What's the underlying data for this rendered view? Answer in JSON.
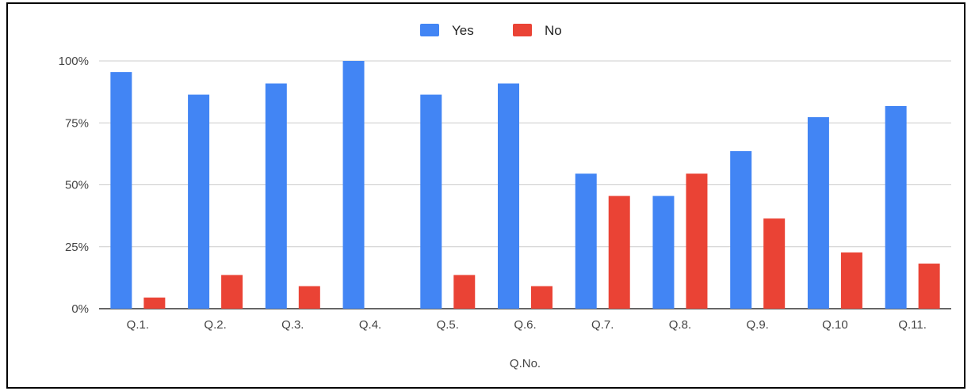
{
  "chart_data": {
    "type": "bar",
    "title": "",
    "xlabel": "Q.No.",
    "ylabel": "",
    "categories": [
      "Q.1.",
      "Q.2.",
      "Q.3.",
      "Q.4.",
      "Q.5.",
      "Q.6.",
      "Q.7.",
      "Q.8.",
      "Q.9.",
      "Q.10",
      "Q.11."
    ],
    "series": [
      {
        "name": "Yes",
        "color": "#4285f4",
        "values": [
          95.5,
          86.4,
          90.9,
          100,
          86.4,
          90.9,
          54.5,
          45.5,
          63.6,
          77.3,
          81.8
        ]
      },
      {
        "name": "No",
        "color": "#ea4335",
        "values": [
          4.5,
          13.6,
          9.1,
          0,
          13.6,
          9.1,
          45.5,
          54.5,
          36.4,
          22.7,
          18.2
        ]
      }
    ],
    "yticks": [
      "0%",
      "25%",
      "50%",
      "75%",
      "100%"
    ],
    "ylim": [
      0,
      100
    ],
    "grid": true,
    "legend_position": "top-center"
  }
}
